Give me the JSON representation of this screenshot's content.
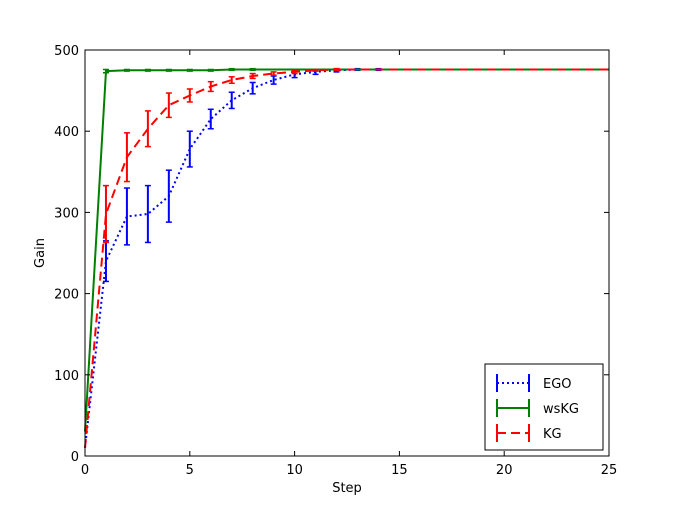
{
  "chart_data": {
    "type": "line",
    "title": "",
    "xlabel": "Step",
    "ylabel": "Gain",
    "xlim": [
      0,
      25
    ],
    "ylim": [
      0,
      500
    ],
    "xticks": [
      0,
      5,
      10,
      15,
      20,
      25
    ],
    "yticks": [
      0,
      100,
      200,
      300,
      400,
      500
    ],
    "grid": false,
    "legend_position": "lower-right",
    "series": [
      {
        "name": "EGO",
        "color": "#0000ff",
        "style": "dotted",
        "x": [
          0,
          1,
          2,
          3,
          4,
          5,
          6,
          7,
          8,
          9,
          10,
          11,
          12,
          13,
          14,
          15,
          16,
          17,
          18,
          19,
          20,
          21,
          22,
          23,
          24,
          25
        ],
        "y": [
          10,
          240,
          295,
          298,
          320,
          378,
          415,
          438,
          453,
          463,
          470,
          473,
          475,
          476,
          476,
          476,
          476,
          476,
          476,
          476,
          476,
          476,
          476,
          476,
          476,
          476
        ],
        "err": [
          0,
          25,
          35,
          35,
          32,
          22,
          12,
          10,
          7,
          5,
          4,
          3,
          2,
          1,
          1,
          0,
          0,
          0,
          0,
          0,
          0,
          0,
          0,
          0,
          0,
          0
        ]
      },
      {
        "name": "wsKG",
        "color": "#008000",
        "style": "solid",
        "x": [
          0,
          1,
          2,
          3,
          4,
          5,
          6,
          7,
          8,
          9,
          10,
          11,
          12,
          13,
          14,
          15,
          16,
          17,
          18,
          19,
          20,
          21,
          22,
          23,
          24,
          25
        ],
        "y": [
          30,
          474,
          475,
          475,
          475,
          475,
          475,
          476,
          476,
          476,
          476,
          476,
          476,
          476,
          476,
          476,
          476,
          476,
          476,
          476,
          476,
          476,
          476,
          476,
          476,
          476
        ],
        "err": [
          0,
          2,
          1,
          1,
          1,
          1,
          1,
          1,
          1,
          0,
          0,
          0,
          0,
          0,
          0,
          0,
          0,
          0,
          0,
          0,
          0,
          0,
          0,
          0,
          0,
          0
        ]
      },
      {
        "name": "KG",
        "color": "#ff0000",
        "style": "dashed",
        "x": [
          0,
          1,
          2,
          3,
          4,
          5,
          6,
          7,
          8,
          9,
          10,
          11,
          12,
          13,
          14,
          15,
          16,
          17,
          18,
          19,
          20,
          21,
          22,
          23,
          24,
          25
        ],
        "y": [
          10,
          298,
          368,
          403,
          432,
          444,
          455,
          463,
          468,
          471,
          473,
          475,
          476,
          476,
          476,
          476,
          476,
          476,
          476,
          476,
          476,
          476,
          476,
          476,
          476,
          476
        ],
        "err": [
          0,
          35,
          30,
          22,
          15,
          8,
          6,
          4,
          3,
          2,
          2,
          1,
          1,
          0,
          0,
          0,
          0,
          0,
          0,
          0,
          0,
          0,
          0,
          0,
          0,
          0
        ]
      }
    ]
  }
}
